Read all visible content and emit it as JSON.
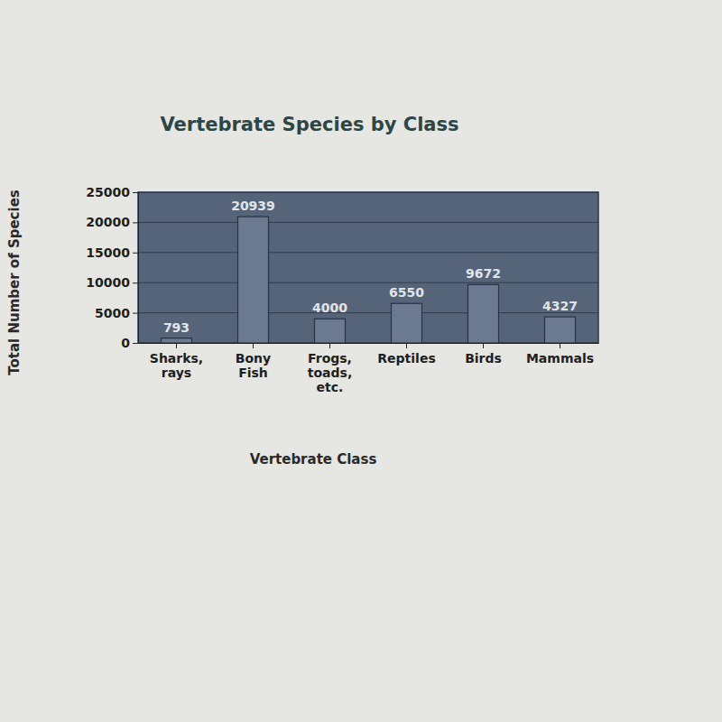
{
  "chart_data": {
    "type": "bar",
    "title": "Vertebrate Species by Class",
    "x_label": "Vertebrate Class",
    "y_label": "Total Number of Species",
    "categories": [
      "Sharks, rays",
      "Bony Fish",
      "Frogs, toads, etc.",
      "Reptiles",
      "Birds",
      "Mammals"
    ],
    "values": [
      793,
      20939,
      4000,
      6550,
      9672,
      4327
    ],
    "color": "#6b7a90",
    "ylim": [
      0,
      25000
    ],
    "yticks": [
      0,
      5000,
      10000,
      15000,
      20000,
      25000
    ],
    "grid": true,
    "data_labels": true
  }
}
